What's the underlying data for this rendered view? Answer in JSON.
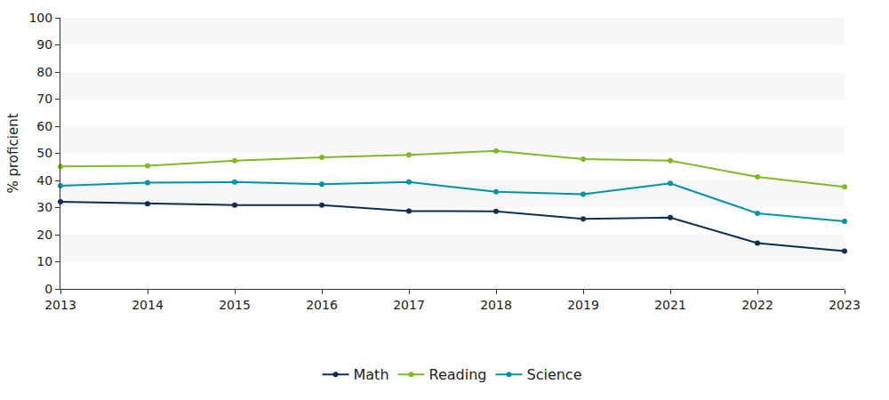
{
  "chart_data": {
    "type": "line",
    "y_label": "% proficient",
    "categories": [
      "2013",
      "2014",
      "2015",
      "2016",
      "2017",
      "2018",
      "2019",
      "2021",
      "2022",
      "2023"
    ],
    "series": [
      {
        "name": "Math",
        "color": "#0b3152",
        "marker": "circle",
        "values": [
          32.1,
          31.4,
          30.9,
          30.9,
          28.7,
          28.6,
          25.8,
          26.3,
          16.9,
          13.9
        ]
      },
      {
        "name": "Reading",
        "color": "#7fba26",
        "marker": "circle",
        "values": [
          45.2,
          45.4,
          47.3,
          48.5,
          49.4,
          50.9,
          47.9,
          47.3,
          41.3,
          37.6
        ]
      },
      {
        "name": "Science",
        "color": "#0092a8",
        "marker": "circle",
        "values": [
          38.0,
          39.2,
          39.4,
          38.6,
          39.4,
          35.8,
          34.9,
          38.9,
          27.9,
          24.9
        ]
      }
    ],
    "ylim": [
      0,
      100
    ],
    "yticks": [
      0,
      10,
      20,
      30,
      40,
      50,
      60,
      70,
      80,
      90,
      100
    ],
    "grid": true,
    "legend": "bottom"
  }
}
